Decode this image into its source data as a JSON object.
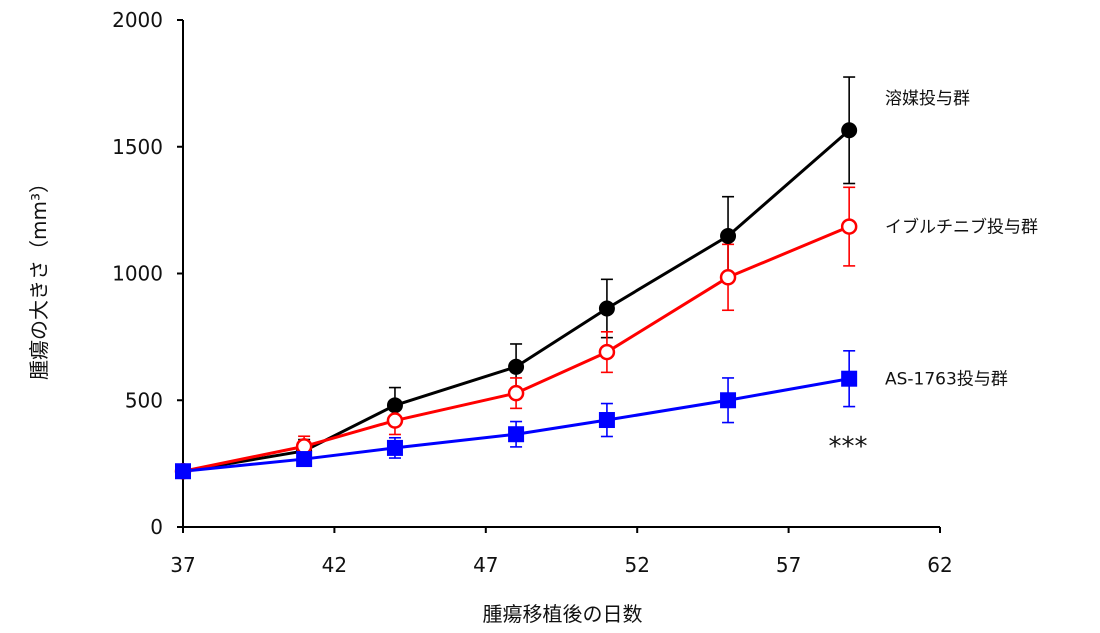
{
  "chart_data": {
    "type": "line",
    "title": "",
    "xlabel": "腫瘍移植後の日数",
    "ylabel": "腫瘍の大きさ（mm³）",
    "xlim": [
      37,
      62
    ],
    "ylim": [
      0,
      2000
    ],
    "xticks": [
      37,
      42,
      47,
      52,
      57,
      62
    ],
    "yticks": [
      0,
      500,
      1000,
      1500,
      2000
    ],
    "grid": false,
    "legend": "none",
    "series": [
      {
        "name": "溶媒投与群",
        "color": "#000000",
        "marker": "filled-circle",
        "x": [
          37,
          41,
          44,
          48,
          51,
          55,
          59
        ],
        "y": [
          220,
          300,
          480,
          632,
          862,
          1148,
          1565
        ],
        "err": [
          15,
          45,
          70,
          90,
          115,
          155,
          210
        ]
      },
      {
        "name": "イブルチニブ投与群",
        "color": "#ff0000",
        "marker": "open-circle",
        "x": [
          37,
          41,
          44,
          48,
          51,
          55,
          59
        ],
        "y": [
          220,
          318,
          420,
          528,
          690,
          985,
          1185
        ],
        "err": [
          15,
          40,
          55,
          60,
          80,
          130,
          155
        ]
      },
      {
        "name": "AS-1763投与群",
        "color": "#0000ff",
        "marker": "filled-square",
        "x": [
          37,
          41,
          44,
          48,
          51,
          55,
          59
        ],
        "y": [
          220,
          268,
          312,
          366,
          422,
          500,
          585
        ],
        "err": [
          15,
          28,
          40,
          50,
          65,
          88,
          110
        ]
      }
    ],
    "annotations": [
      {
        "text": "***",
        "series": "AS-1763投与群"
      }
    ]
  }
}
